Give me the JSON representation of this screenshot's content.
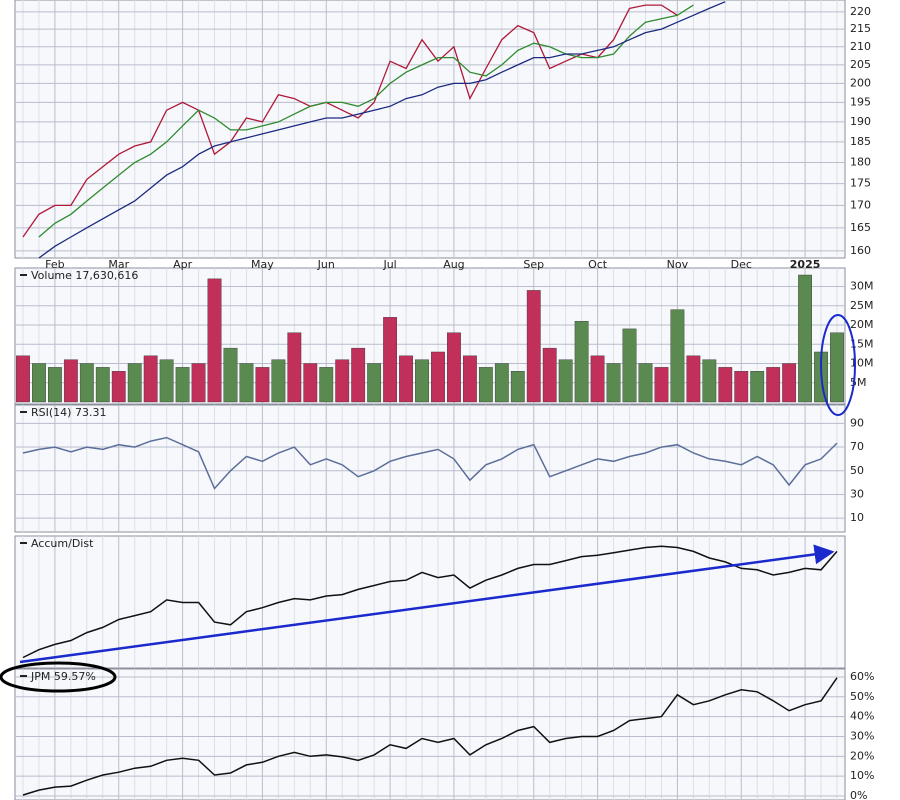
{
  "chart_data": [
    {
      "type": "line",
      "log": true,
      "grid": true,
      "categories": [
        null,
        null,
        "Feb",
        null,
        null,
        null,
        "Mar",
        null,
        null,
        null,
        "Apr",
        null,
        null,
        null,
        null,
        "May",
        null,
        null,
        null,
        "Jun",
        null,
        null,
        null,
        "Jul",
        null,
        null,
        null,
        "Aug",
        null,
        null,
        null,
        null,
        "Sep",
        null,
        null,
        null,
        "Oct",
        null,
        null,
        null,
        null,
        "Nov",
        null,
        null,
        null,
        "Dec",
        null,
        null,
        null,
        "2025",
        null,
        null
      ],
      "ylim": [
        158.5,
        223.5
      ],
      "yticks": [
        160,
        165,
        170,
        175,
        180,
        185,
        190,
        195,
        200,
        205,
        210,
        215,
        220
      ],
      "series": [
        {
          "color": "#b01838",
          "values": [
            163,
            168,
            170,
            170,
            176,
            179,
            182,
            184,
            185,
            193,
            195,
            193,
            182,
            185,
            191,
            190,
            197,
            196,
            194,
            195,
            193,
            191,
            195,
            206,
            204,
            212,
            206,
            210,
            196,
            204,
            212,
            216,
            214,
            204,
            206,
            208,
            207,
            212,
            221,
            222,
            222,
            219,
            null,
            null,
            null,
            null,
            null,
            null,
            null,
            null,
            null,
            null
          ]
        },
        {
          "color": "#2e8b2e",
          "values": [
            null,
            163,
            166,
            168,
            171,
            174,
            177,
            180,
            182,
            185,
            189,
            193,
            191,
            188,
            188,
            189,
            190,
            192,
            194,
            195,
            195,
            194,
            196,
            200,
            203,
            205,
            207,
            207,
            203,
            202,
            205,
            209,
            211,
            210,
            208,
            207,
            207,
            208,
            213,
            217,
            218,
            219,
            222,
            null,
            null,
            null,
            null,
            null,
            null,
            null,
            null,
            null
          ]
        },
        {
          "color": "#1c2a80",
          "values": [
            null,
            158.5,
            161,
            163,
            165,
            167,
            169,
            171,
            174,
            177,
            179,
            182,
            184,
            185,
            186,
            187,
            188,
            189,
            190,
            191,
            191,
            192,
            193,
            194,
            196,
            197,
            199,
            200,
            200,
            201,
            203,
            205,
            207,
            207,
            208,
            208,
            209,
            210,
            212,
            214,
            215,
            217,
            219,
            221,
            223,
            null,
            null,
            null,
            null,
            null,
            null,
            null
          ]
        }
      ]
    },
    {
      "type": "bar",
      "title": "Volume 17,630,616",
      "grid": true,
      "ylim": [
        0,
        34300000
      ],
      "yticks": [
        {
          "value": 5000000,
          "label": "5M"
        },
        {
          "value": 10000000,
          "label": "10M"
        },
        {
          "value": 15000000,
          "label": "15M"
        },
        {
          "value": 20000000,
          "label": "20M"
        },
        {
          "value": 25000000,
          "label": "25M"
        },
        {
          "value": 30000000,
          "label": "30M"
        }
      ],
      "values": [
        12000000,
        10000000,
        9000000,
        11000000,
        10000000,
        9000000,
        8000000,
        10000000,
        12000000,
        11000000,
        9000000,
        10000000,
        32000000,
        14000000,
        10000000,
        9000000,
        11000000,
        18000000,
        10000000,
        9000000,
        11000000,
        14000000,
        10000000,
        22000000,
        12000000,
        11000000,
        13000000,
        18000000,
        12000000,
        9000000,
        10000000,
        8000000,
        29000000,
        14000000,
        11000000,
        21000000,
        12000000,
        10000000,
        19000000,
        10000000,
        9000000,
        24000000,
        12000000,
        11000000,
        9000000,
        8000000,
        8000000,
        9000000,
        10000000,
        33000000,
        13000000,
        18000000
      ],
      "colors": [
        "#c0305a",
        "#5a8a4f",
        "#5a8a4f",
        "#c0305a",
        "#5a8a4f",
        "#5a8a4f",
        "#c0305a",
        "#5a8a4f",
        "#c0305a",
        "#5a8a4f",
        "#5a8a4f",
        "#c0305a",
        "#c0305a",
        "#5a8a4f",
        "#5a8a4f",
        "#c0305a",
        "#5a8a4f",
        "#c0305a",
        "#c0305a",
        "#5a8a4f",
        "#c0305a",
        "#c0305a",
        "#5a8a4f",
        "#c0305a",
        "#c0305a",
        "#5a8a4f",
        "#c0305a",
        "#c0305a",
        "#c0305a",
        "#5a8a4f",
        "#5a8a4f",
        "#5a8a4f",
        "#c0305a",
        "#c0305a",
        "#5a8a4f",
        "#5a8a4f",
        "#c0305a",
        "#5a8a4f",
        "#5a8a4f",
        "#5a8a4f",
        "#c0305a",
        "#5a8a4f",
        "#c0305a",
        "#5a8a4f",
        "#c0305a",
        "#c0305a",
        "#5a8a4f",
        "#c0305a",
        "#c0305a",
        "#5a8a4f",
        "#5a8a4f",
        "#5a8a4f"
      ]
    },
    {
      "type": "line",
      "title": "RSI(14) 73.31",
      "grid": true,
      "ylim": [
        0,
        100
      ],
      "yticks": [
        10,
        30,
        50,
        70,
        90
      ],
      "series": [
        {
          "color": "#5c6f9a",
          "values": [
            65,
            68,
            70,
            66,
            70,
            68,
            72,
            70,
            75,
            78,
            72,
            66,
            35,
            50,
            62,
            58,
            65,
            70,
            55,
            60,
            55,
            45,
            50,
            58,
            62,
            65,
            68,
            60,
            42,
            55,
            60,
            68,
            72,
            45,
            50,
            55,
            60,
            58,
            62,
            65,
            70,
            72,
            65,
            60,
            58,
            55,
            62,
            55,
            38,
            55,
            60,
            73.31
          ]
        }
      ]
    },
    {
      "type": "line",
      "title": "Accum/Dist",
      "grid": false,
      "ylim": [
        0,
        100
      ],
      "series": [
        {
          "color": "#111111",
          "values": [
            8,
            14,
            18,
            21,
            27,
            31,
            37,
            40,
            43,
            52,
            50,
            50,
            35,
            33,
            43,
            46,
            50,
            53,
            52,
            55,
            56,
            60,
            63,
            66,
            67,
            73,
            69,
            71,
            61,
            67,
            71,
            76,
            79,
            79,
            82,
            85,
            86,
            88,
            90,
            92,
            93,
            92,
            89,
            84,
            81,
            76,
            75,
            71,
            73,
            76,
            75,
            89
          ]
        }
      ]
    },
    {
      "type": "line",
      "title": "JPM 59.57%",
      "grid": true,
      "ylim": [
        -2,
        63.5
      ],
      "yticks": [
        {
          "value": 0,
          "label": "0%"
        },
        {
          "value": 10,
          "label": "10%"
        },
        {
          "value": 20,
          "label": "20%"
        },
        {
          "value": 30,
          "label": "30%"
        },
        {
          "value": 40,
          "label": "40%"
        },
        {
          "value": 50,
          "label": "50%"
        },
        {
          "value": 60,
          "label": "60%"
        }
      ],
      "series": [
        {
          "color": "#111111",
          "values": [
            0.5,
            3,
            4.5,
            5,
            8,
            10.6,
            12,
            14,
            15,
            18,
            19,
            18,
            10.6,
            11.6,
            15.7,
            17,
            20,
            22,
            20,
            20.7,
            19.7,
            18,
            20.7,
            25.8,
            24,
            29,
            27,
            29,
            20.7,
            25.8,
            29,
            33,
            35,
            27,
            29,
            30,
            30,
            33,
            38,
            39,
            40,
            51,
            46,
            48,
            51,
            53.5,
            52.5,
            48,
            43,
            46,
            48,
            59.57
          ]
        }
      ]
    }
  ]
}
